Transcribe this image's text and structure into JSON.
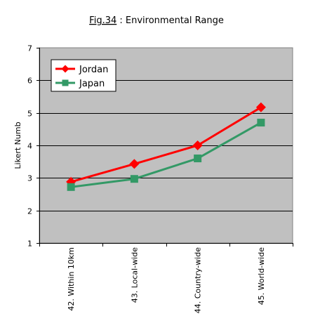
{
  "figure": {
    "label": "Fig.34",
    "separator": " : ",
    "title": "Environmental Range"
  },
  "chart_data": {
    "type": "line",
    "title": "Fig.34 : Environmental Range",
    "xlabel": "",
    "ylabel": "Likert Numb",
    "categories": [
      "42. Within 10km",
      "43. Local-wide",
      "44. Country-wide",
      "45. World-wide"
    ],
    "ylim": [
      1,
      7
    ],
    "yticks": [
      1,
      2,
      3,
      4,
      5,
      6,
      7
    ],
    "grid": true,
    "legend_position": "top-left",
    "plot_background": "#c0c0c0",
    "series": [
      {
        "name": "Jordan",
        "color": "#ff0000",
        "marker": "diamond",
        "values": [
          2.88,
          3.43,
          4.0,
          5.17
        ]
      },
      {
        "name": "Japan",
        "color": "#339966",
        "marker": "square",
        "values": [
          2.72,
          2.97,
          3.6,
          4.7
        ]
      }
    ]
  }
}
